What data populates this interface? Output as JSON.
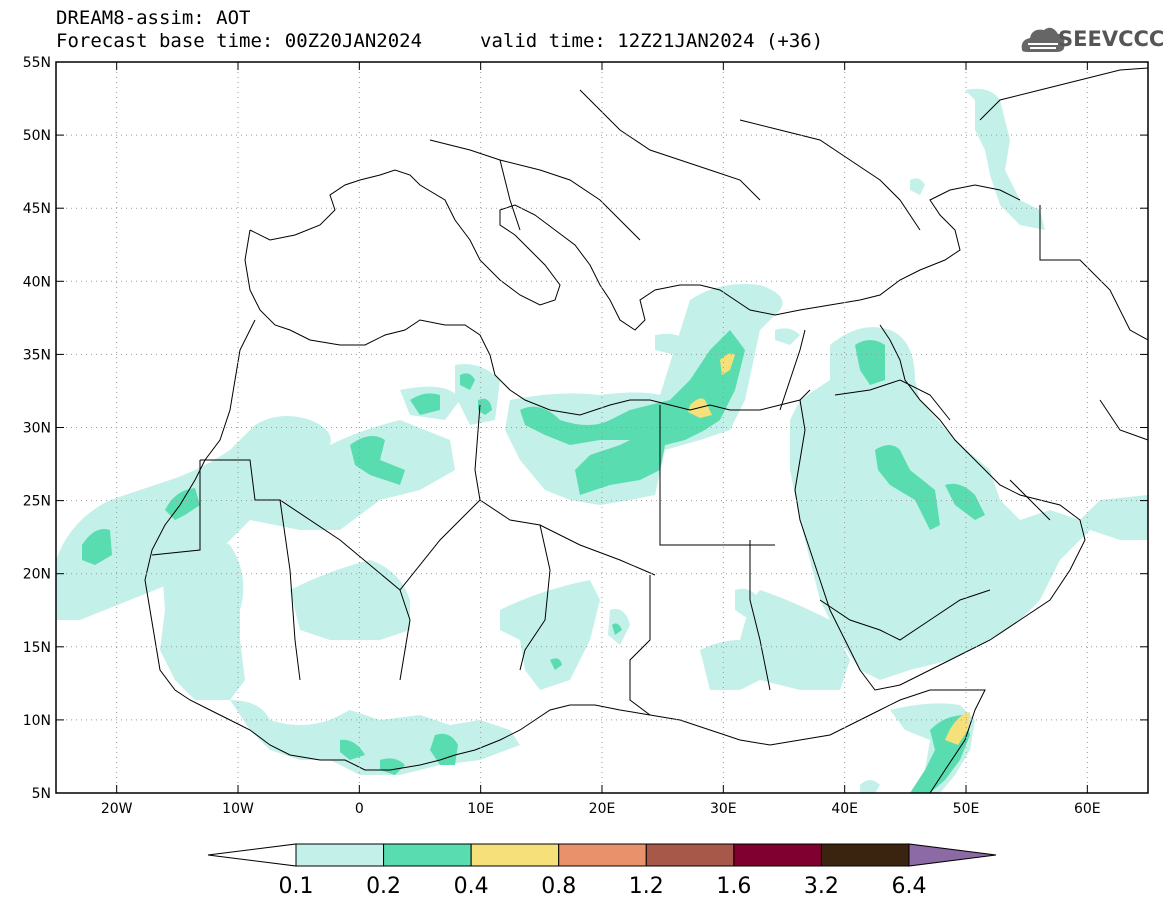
{
  "header": {
    "title": "DREAM8-assim: AOT",
    "base_time": "Forecast base time: 00Z20JAN2024",
    "valid_time": "valid time: 12Z21JAN2024 (+36)",
    "logo_text": "SEEVCCC"
  },
  "axes": {
    "lat_labels": [
      "55N",
      "50N",
      "45N",
      "40N",
      "35N",
      "30N",
      "25N",
      "20N",
      "15N",
      "10N",
      "5N"
    ],
    "lat_values": [
      55,
      50,
      45,
      40,
      35,
      30,
      25,
      20,
      15,
      10,
      5
    ],
    "lon_labels": [
      "20W",
      "10W",
      "0",
      "10E",
      "20E",
      "30E",
      "40E",
      "50E",
      "60E"
    ],
    "lon_values": [
      -20,
      -10,
      0,
      10,
      20,
      30,
      40,
      50,
      60
    ],
    "lon_range": [
      -25,
      65
    ],
    "lat_range": [
      5,
      55
    ],
    "grid": "dotted"
  },
  "colorbar": {
    "labels": [
      "0.1",
      "0.2",
      "0.4",
      "0.8",
      "1.2",
      "1.6",
      "3.2",
      "6.4"
    ],
    "colors": [
      "#c4f0ea",
      "#58dcb0",
      "#f5e07a",
      "#e8916a",
      "#a85848",
      "#800030",
      "#3a2410",
      "#8c6aa6"
    ]
  },
  "colors": {
    "level1": "#c4f0ea",
    "level2": "#58dcb0",
    "level3": "#f5e07a",
    "border": "#000000"
  }
}
